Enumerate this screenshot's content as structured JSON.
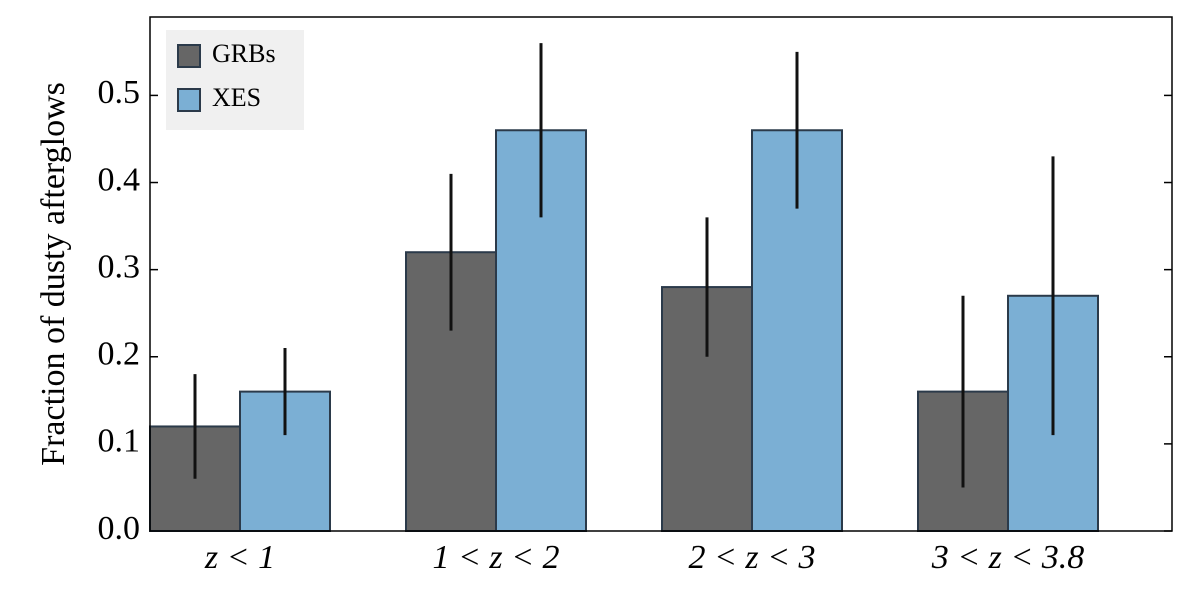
{
  "chart_data": {
    "type": "bar",
    "ylabel": "Fraction of dusty afterglows",
    "categories": [
      "z < 1",
      "1 < z < 2",
      "2 < z < 3",
      "3 < z < 3.8"
    ],
    "series": [
      {
        "name": "GRBs",
        "color": "#666666",
        "values": [
          0.12,
          0.32,
          0.28,
          0.16
        ],
        "errors": [
          0.06,
          0.09,
          0.08,
          0.11
        ]
      },
      {
        "name": "XES",
        "color": "#7bafd4",
        "values": [
          0.16,
          0.46,
          0.46,
          0.27
        ],
        "errors": [
          0.05,
          0.1,
          0.09,
          0.16
        ]
      }
    ],
    "ylim": [
      0,
      0.59
    ],
    "yticks": [
      {
        "value": 0,
        "label": "0.0"
      },
      0.1,
      0.2,
      0.3,
      0.4,
      0.5
    ],
    "legend": "upper left"
  }
}
